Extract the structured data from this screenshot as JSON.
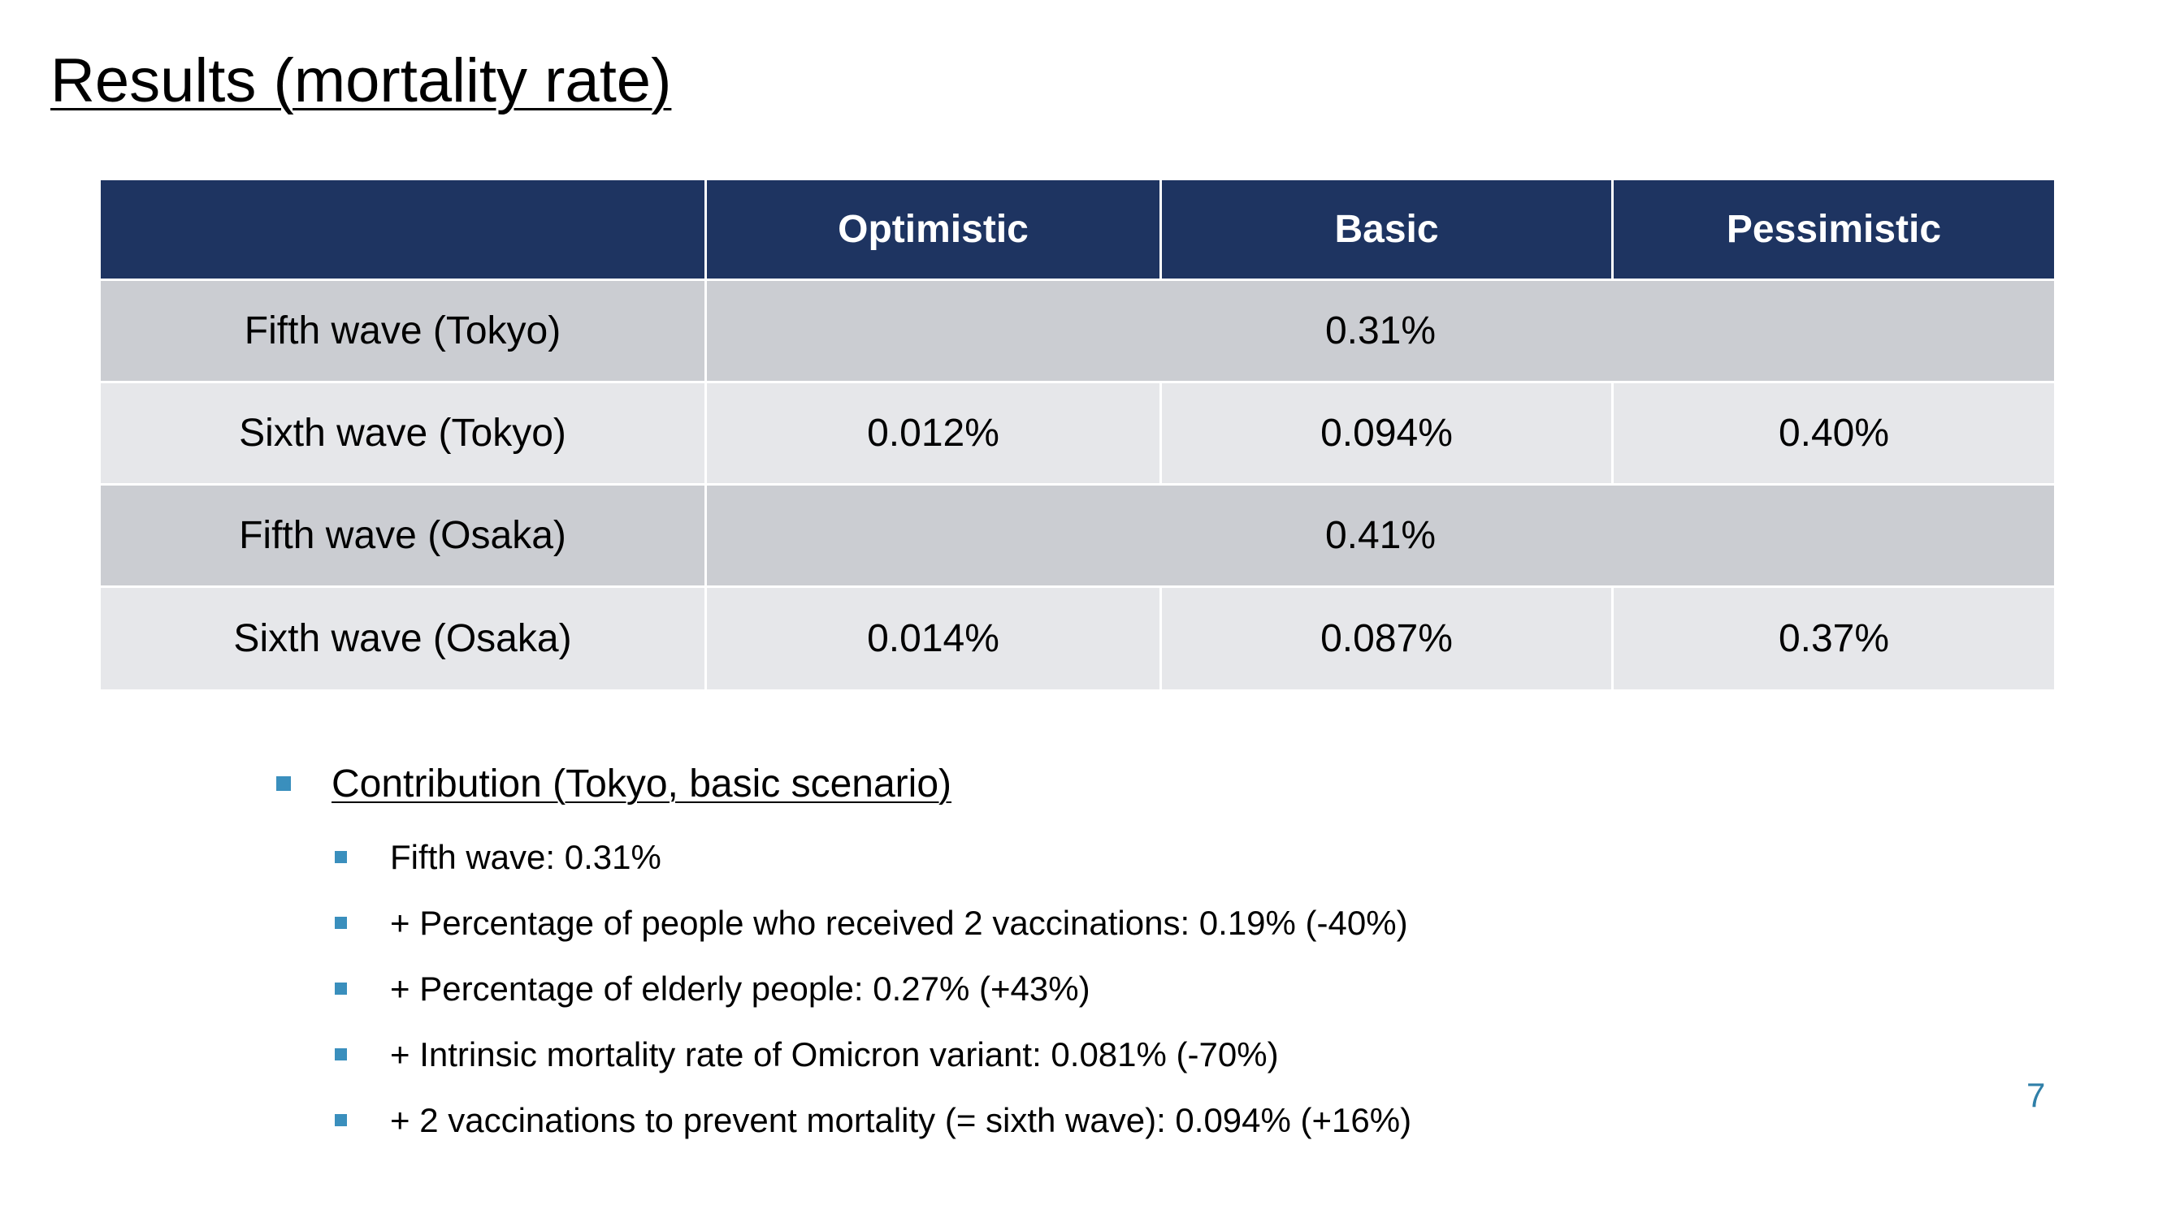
{
  "slide": {
    "title": "Results (mortality rate)",
    "page_number": "7"
  },
  "table": {
    "headers": [
      "",
      "Optimistic",
      "Basic",
      "Pessimistic"
    ],
    "rows": [
      {
        "label": "Fifth wave (Tokyo)",
        "merged_value": "0.31%"
      },
      {
        "label": "Sixth wave (Tokyo)",
        "optimistic": "0.012%",
        "basic": "0.094%",
        "pessimistic": "0.40%"
      },
      {
        "label": "Fifth wave (Osaka)",
        "merged_value": "0.41%"
      },
      {
        "label": "Sixth wave (Osaka)",
        "optimistic": "0.014%",
        "basic": "0.087%",
        "pessimistic": "0.37%"
      }
    ],
    "colors": {
      "header_bg": "#1e3461",
      "row_dark": "#cbcdd2",
      "row_light": "#e6e7ea"
    }
  },
  "contribution": {
    "heading": "Contribution (Tokyo, basic scenario)",
    "items": [
      "Fifth wave: 0.31%",
      "+ Percentage of people who received 2 vaccinations: 0.19% (-40%)",
      "+ Percentage of elderly people: 0.27% (+43%)",
      "+ Intrinsic mortality rate of Omicron variant: 0.081% (-70%)",
      "+ 2 vaccinations to prevent mortality (= sixth wave): 0.094% (+16%)"
    ],
    "bullet_color": "#3a8fbd",
    "bullet_icon": "square-bullet-icon"
  }
}
